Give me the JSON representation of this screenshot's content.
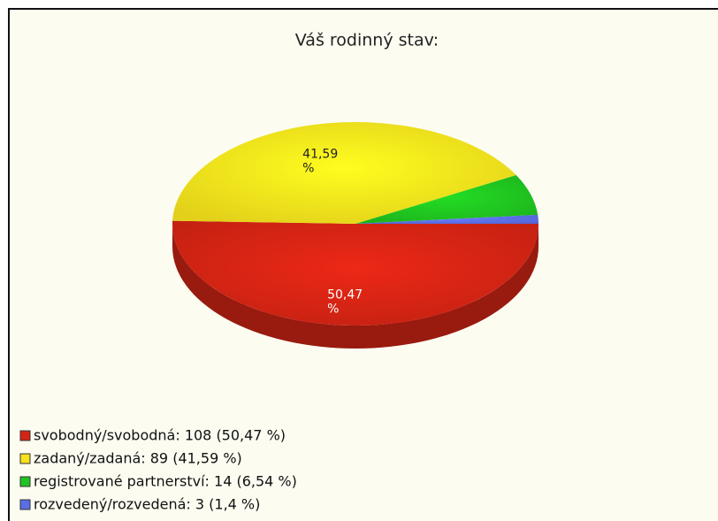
{
  "chart_data": {
    "type": "pie",
    "title": "Váš rodinný stav:",
    "categories": [
      "svobodný/svobodná: 108 (50,47 %)",
      "zadaný/zadaná: 89 (41,59 %)",
      "registrované partnerství: 14 (6,54 %)",
      "rozvedený/rozvedená: 3 (1,4 %)"
    ],
    "values": [
      50.47,
      41.59,
      6.54,
      1.4
    ],
    "value_labels": [
      "50,47 %",
      "41,59 %",
      null,
      null
    ],
    "colors": [
      "#d42414",
      "#f6e21c",
      "#20c420",
      "#5a6ee6"
    ],
    "three_d": true,
    "legend": "bottom-left"
  }
}
